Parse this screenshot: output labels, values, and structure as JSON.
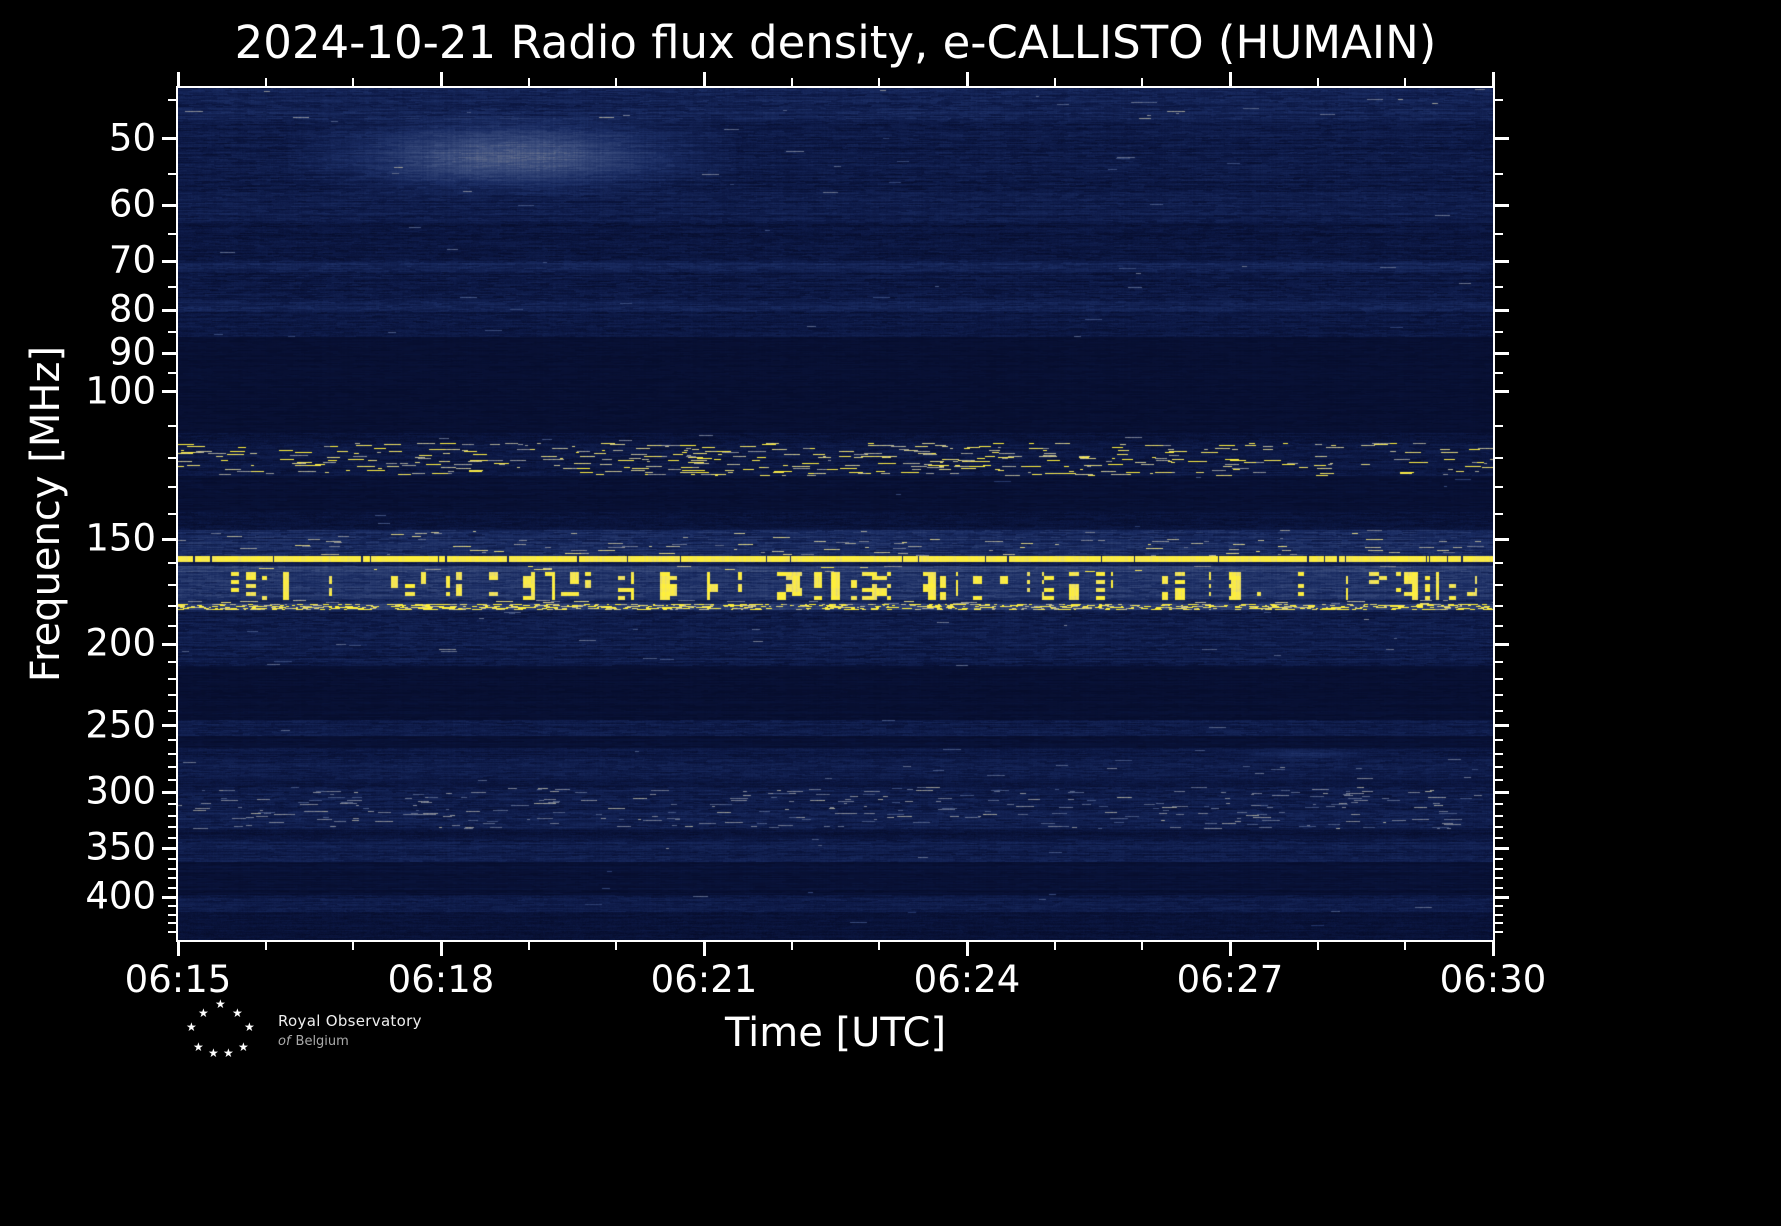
{
  "title": "2024-10-21 Radio flux density, e-CALLISTO (HUMAIN)",
  "axes": {
    "xlabel": "Time [UTC]",
    "ylabel": "Frequency [MHz]",
    "x_major_labels": [
      "06:15",
      "06:18",
      "06:21",
      "06:24",
      "06:27",
      "06:30"
    ],
    "x_minor_every_minutes": 1,
    "y_major_ticks_mhz": [
      50,
      60,
      70,
      80,
      90,
      100,
      150,
      200,
      250,
      300,
      350,
      400
    ],
    "y_minor_ticks_mhz": [
      45,
      55,
      65,
      75,
      85,
      95,
      110,
      120,
      130,
      140,
      160,
      170,
      180,
      190,
      210,
      220,
      230,
      240,
      260,
      270,
      280,
      290,
      310,
      320,
      330,
      340,
      360,
      370,
      380,
      390,
      410,
      420,
      430,
      440
    ]
  },
  "chart_data": {
    "type": "heatmap",
    "title": "2024-10-21 Radio flux density, e-CALLISTO (HUMAIN)",
    "xlabel": "Time [UTC]",
    "ylabel": "Frequency [MHz]",
    "x_range_utc": [
      "06:15",
      "06:30"
    ],
    "x_duration_min": 15,
    "x_tick_labels": [
      "06:15",
      "06:18",
      "06:21",
      "06:24",
      "06:27",
      "06:30"
    ],
    "y_scale": "log",
    "y_range_mhz": [
      43.5,
      450
    ],
    "y_tick_labels_mhz": [
      50,
      60,
      70,
      80,
      90,
      100,
      150,
      200,
      250,
      300,
      350,
      400
    ],
    "seed": 20241021,
    "colormap_stops": [
      [
        0.0,
        4,
        9,
        36
      ],
      [
        0.1,
        12,
        24,
        68
      ],
      [
        0.22,
        26,
        44,
        98
      ],
      [
        0.4,
        60,
        78,
        126
      ],
      [
        0.6,
        127,
        132,
        148
      ],
      [
        0.78,
        198,
        193,
        148
      ],
      [
        0.9,
        243,
        228,
        92
      ],
      [
        1.0,
        255,
        240,
        58
      ]
    ],
    "bands": [
      {
        "f1": 43.5,
        "f2": 47.5,
        "base": 0.16,
        "rv": 0.5,
        "xn": 0.1,
        "sp": 0.004,
        "spv": 0.55,
        "mode": "plain",
        "desc": "textured noise band at top of plot"
      },
      {
        "f1": 47.5,
        "f2": 58,
        "base": 0.11,
        "rv": 0.6,
        "xn": 0.08,
        "sp": 0.002,
        "spv": 0.45,
        "mode": "plain",
        "desc": "striped background, hosts diffuse 50 MHz enhancement"
      },
      {
        "f1": 58,
        "f2": 63,
        "base": 0.13,
        "rv": 0.5,
        "xn": 0.08,
        "sp": 0.002,
        "spv": 0.5,
        "mode": "plain"
      },
      {
        "f1": 63,
        "f2": 70,
        "base": 0.085,
        "rv": 0.6,
        "xn": 0.07,
        "sp": 0.001,
        "spv": 0.4,
        "mode": "plain"
      },
      {
        "f1": 70,
        "f2": 72,
        "base": 0.16,
        "rv": 0.4,
        "xn": 0.09,
        "sp": 0.002,
        "spv": 0.5,
        "mode": "plain",
        "desc": "bright narrow interference line near 71 MHz"
      },
      {
        "f1": 72,
        "f2": 78,
        "base": 0.1,
        "rv": 0.6,
        "xn": 0.08,
        "sp": 0.002,
        "spv": 0.45,
        "mode": "plain"
      },
      {
        "f1": 78,
        "f2": 80.5,
        "base": 0.15,
        "rv": 0.4,
        "xn": 0.09,
        "sp": 0.002,
        "spv": 0.5,
        "mode": "plain",
        "desc": "bright narrow interference line near 79 MHz"
      },
      {
        "f1": 80.5,
        "f2": 86,
        "base": 0.1,
        "rv": 0.5,
        "xn": 0.07,
        "sp": 0.002,
        "spv": 0.4,
        "mode": "plain"
      },
      {
        "f1": 86,
        "f2": 112,
        "base": 0.045,
        "rv": 0.4,
        "xn": 0.025,
        "sp": 0,
        "spv": 0,
        "mode": "plain",
        "desc": "quiet dark zone 86-112 MHz"
      },
      {
        "f1": 112,
        "f2": 115,
        "base": 0.07,
        "rv": 0.5,
        "xn": 0.05,
        "sp": 0.002,
        "spv": 0.5,
        "mode": "plain"
      },
      {
        "f1": 115,
        "f2": 126,
        "base": 0.1,
        "rv": 0.5,
        "xn": 0.07,
        "sp": 0.1,
        "spv": 0.85,
        "mode": "speckle",
        "desc": "airband: scattered bright speckles, some saturated yellow"
      },
      {
        "f1": 126,
        "f2": 139,
        "base": 0.05,
        "rv": 0.5,
        "xn": 0.03,
        "sp": 0.001,
        "spv": 0.4,
        "mode": "plain"
      },
      {
        "f1": 139,
        "f2": 146,
        "base": 0.075,
        "rv": 0.5,
        "xn": 0.05,
        "sp": 0.002,
        "spv": 0.4,
        "mode": "plain"
      },
      {
        "f1": 146,
        "f2": 157,
        "base": 0.2,
        "rv": 0.45,
        "xn": 0.13,
        "sp": 0.03,
        "spv": 0.7,
        "mode": "plain",
        "desc": "bright textured band below 157 MHz carrier"
      },
      {
        "f1": 157,
        "f2": 159.5,
        "base": 0.95,
        "rv": 0.04,
        "xn": 0.04,
        "sp": 0,
        "spv": 0,
        "mode": "line",
        "desc": "continuous saturated yellow carrier ~158 MHz with thin dark dropouts"
      },
      {
        "f1": 159.5,
        "f2": 161.5,
        "base": 0.12,
        "rv": 0.4,
        "xn": 0.07,
        "sp": 0,
        "spv": 0,
        "mode": "plain"
      },
      {
        "f1": 161.5,
        "f2": 164,
        "base": 0.32,
        "rv": 0.25,
        "xn": 0.12,
        "sp": 0.02,
        "spv": 0.8,
        "mode": "plain",
        "desc": "pale continuous line ~162 MHz"
      },
      {
        "f1": 164,
        "f2": 177,
        "base": 0.26,
        "rv": 0.4,
        "xn": 0.12,
        "sp": 0,
        "spv": 0,
        "mode": "burst",
        "desc": "dense intermittent saturated-yellow vertical bursts 164-177 MHz"
      },
      {
        "f1": 177,
        "f2": 179,
        "base": 0.18,
        "rv": 0.4,
        "xn": 0.1,
        "sp": 0.04,
        "spv": 0.7,
        "mode": "plain"
      },
      {
        "f1": 179,
        "f2": 182,
        "base": 0.3,
        "rv": 0.3,
        "xn": 0.1,
        "sp": 0.45,
        "spv": 0.97,
        "mode": "dots",
        "desc": "dotted yellow line ~180 MHz"
      },
      {
        "f1": 182,
        "f2": 212,
        "base": 0.12,
        "rv": 0.6,
        "xn": 0.09,
        "sp": 0.005,
        "spv": 0.5,
        "mode": "plain",
        "desc": "striped moderate noise 182-212 MHz"
      },
      {
        "f1": 212,
        "f2": 246,
        "base": 0.045,
        "rv": 0.5,
        "xn": 0.025,
        "sp": 0,
        "spv": 0,
        "mode": "plain",
        "desc": "quiet dark zone"
      },
      {
        "f1": 246,
        "f2": 257,
        "base": 0.12,
        "rv": 0.5,
        "xn": 0.08,
        "sp": 0.003,
        "spv": 0.5,
        "mode": "plain",
        "desc": "noise stripe near 250 MHz"
      },
      {
        "f1": 257,
        "f2": 266,
        "base": 0.055,
        "rv": 0.5,
        "xn": 0.03,
        "sp": 0,
        "spv": 0,
        "mode": "plain"
      },
      {
        "f1": 266,
        "f2": 274,
        "base": 0.1,
        "rv": 0.5,
        "xn": 0.06,
        "sp": 0.002,
        "spv": 0.4,
        "mode": "plain",
        "desc": "faint stripe ~270 MHz with weak enhancement near 06:27"
      },
      {
        "f1": 274,
        "f2": 289,
        "base": 0.12,
        "rv": 0.55,
        "xn": 0.08,
        "sp": 0.006,
        "spv": 0.5,
        "mode": "plain"
      },
      {
        "f1": 289,
        "f2": 296,
        "base": 0.085,
        "rv": 0.5,
        "xn": 0.05,
        "sp": 0.002,
        "spv": 0.4,
        "mode": "plain"
      },
      {
        "f1": 296,
        "f2": 332,
        "base": 0.13,
        "rv": 0.55,
        "xn": 0.09,
        "sp": 0.06,
        "spv": 0.55,
        "mode": "speckle",
        "desc": "speckled band ~300-330 MHz"
      },
      {
        "f1": 332,
        "f2": 341,
        "base": 0.075,
        "rv": 0.5,
        "xn": 0.04,
        "sp": 0.001,
        "spv": 0.4,
        "mode": "plain"
      },
      {
        "f1": 341,
        "f2": 363,
        "base": 0.13,
        "rv": 0.5,
        "xn": 0.08,
        "sp": 0.004,
        "spv": 0.5,
        "mode": "plain",
        "desc": "noise stripe ~350 MHz"
      },
      {
        "f1": 363,
        "f2": 398,
        "base": 0.055,
        "rv": 0.6,
        "xn": 0.03,
        "sp": 0.001,
        "spv": 0.35,
        "mode": "plain"
      },
      {
        "f1": 398,
        "f2": 417,
        "base": 0.115,
        "rv": 0.5,
        "xn": 0.07,
        "sp": 0.003,
        "spv": 0.45,
        "mode": "plain",
        "desc": "noise stripe ~405-415 MHz"
      },
      {
        "f1": 417,
        "f2": 450,
        "base": 0.065,
        "rv": 0.5,
        "xn": 0.04,
        "sp": 0.001,
        "spv": 0.35,
        "mode": "plain"
      }
    ],
    "features": [
      {
        "type": "diffuse",
        "t1_min": 1.7,
        "t2_min": 5.9,
        "f1": 48,
        "f2": 57,
        "amp": 0.33,
        "desc": "faint diffuse grey enhancement 50-56 MHz, ~06:17-06:21"
      },
      {
        "type": "diffuse",
        "t1_min": 12.0,
        "t2_min": 13.7,
        "f1": 267,
        "f2": 273,
        "amp": 0.12,
        "desc": "weak enhancement near 270 MHz, ~06:27-06:28"
      }
    ]
  },
  "logo": {
    "line1": "Royal Observatory",
    "line2_a": "of",
    "line2_b": "Belgium",
    "stars": [
      [
        215,
        998
      ],
      [
        198,
        1007
      ],
      [
        232,
        1007
      ],
      [
        186,
        1021
      ],
      [
        244,
        1021
      ],
      [
        193,
        1041
      ],
      [
        208,
        1047
      ],
      [
        223,
        1047
      ],
      [
        238,
        1041
      ]
    ]
  },
  "colors": {
    "background": "#000000",
    "foreground": "#ffffff",
    "frame": "#ffffff",
    "carrier_yellow": "#ffee3a",
    "base_navy": "#0c1844"
  }
}
